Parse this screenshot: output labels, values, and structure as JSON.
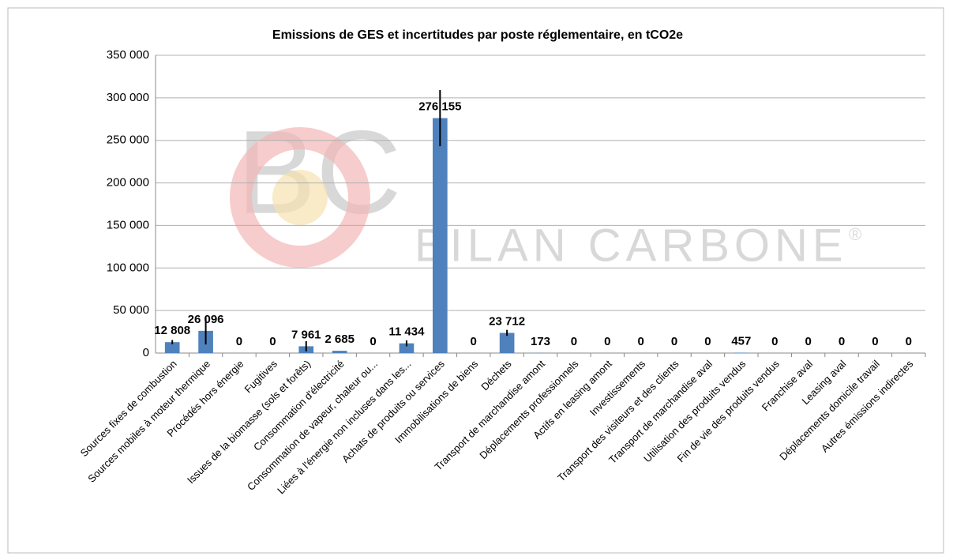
{
  "chart_data": {
    "type": "bar",
    "title": "Emissions de GES et incertitudes par poste réglementaire, en tCO2e",
    "watermark": [
      "BC",
      "BILAN CARBONE",
      "®"
    ],
    "categories": [
      "Sources fixes de combustion",
      "Sources mobiles à moteur thermique",
      "Procédés hors énergie",
      "Fugitives",
      "Issues de la biomasse (sols et forêts)",
      "Consommation d'électricité",
      "Consommation de vapeur, chaleur ou...",
      "Liées à l'énergie non incluses dans les...",
      "Achats de produits ou services",
      "Immobilisations de biens",
      "Déchets",
      "Transport de marchandise amont",
      "Déplacements professionnels",
      "Actifs en leasing amont",
      "Investissements",
      "Transport des visiteurs et des clients",
      "Transport de marchandise aval",
      "Utilisation des produits vendus",
      "Fin de vie des produits vendus",
      "Franchise aval",
      "Leasing aval",
      "Déplacements domicile travail",
      "Autres émissions indirectes"
    ],
    "values": [
      12808,
      26096,
      0,
      0,
      7961,
      2685,
      0,
      11434,
      276155,
      0,
      23712,
      173,
      0,
      0,
      0,
      0,
      0,
      457,
      0,
      0,
      0,
      0,
      0
    ],
    "value_labels": [
      "12 808",
      "26 096",
      "0",
      "0",
      "7 961",
      "2 685",
      "0",
      "11 434",
      "276 155",
      "0",
      "23 712",
      "173",
      "0",
      "0",
      "0",
      "0",
      "0",
      "457",
      "0",
      "0",
      "0",
      "0",
      "0"
    ],
    "errors": [
      2500,
      16000,
      0,
      0,
      6000,
      0,
      0,
      3500,
      33000,
      0,
      3500,
      0,
      0,
      0,
      0,
      0,
      0,
      0,
      0,
      0,
      0,
      0,
      0
    ],
    "color": "#4f81bd",
    "ylim": [
      0,
      350000
    ],
    "yticks": [
      0,
      {
        "value": 50000,
        "label": "50 000"
      },
      {
        "value": 100000,
        "label": "100 000"
      },
      {
        "value": 150000,
        "label": "150 000"
      },
      {
        "value": 200000,
        "label": "200 000"
      },
      {
        "value": 250000,
        "label": "250 000"
      },
      {
        "value": 300000,
        "label": "300 000"
      },
      {
        "value": 350000,
        "label": "350 000"
      }
    ],
    "grid": true
  }
}
